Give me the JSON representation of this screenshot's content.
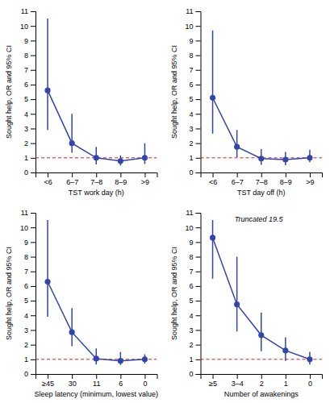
{
  "chart_data": [
    {
      "type": "line",
      "xlabel": "TST work day (h)",
      "ylabel": "Sought help, OR and 95% CI",
      "categories": [
        "<6",
        "6–7",
        "7–8",
        "8–9",
        ">9"
      ],
      "values": [
        5.6,
        2.0,
        1.0,
        0.78,
        1.0
      ],
      "ci_lower": [
        2.9,
        1.35,
        0.55,
        0.48,
        0.58
      ],
      "ci_upper": [
        10.5,
        4.0,
        1.75,
        1.15,
        2.0
      ],
      "ylim": [
        0,
        11
      ],
      "yticks": [
        0,
        1,
        2,
        3,
        4,
        5,
        6,
        7,
        8,
        9,
        10,
        11
      ],
      "color": "#3344aa",
      "marker": "circle",
      "ref_line": {
        "value": 1,
        "color": "#cc2222",
        "line_style": "dashed"
      }
    },
    {
      "type": "line",
      "xlabel": "TST day off (h)",
      "ylabel": "Sought help, OR and 95% CI",
      "categories": [
        "<6",
        "6–7",
        "7–8",
        "8–9",
        ">9"
      ],
      "values": [
        5.1,
        1.75,
        0.95,
        0.88,
        1.0
      ],
      "ci_lower": [
        2.65,
        1.05,
        0.52,
        0.5,
        0.7
      ],
      "ci_upper": [
        9.7,
        2.9,
        1.6,
        1.4,
        1.55
      ],
      "ylim": [
        0,
        11
      ],
      "yticks": [
        0,
        1,
        2,
        3,
        4,
        5,
        6,
        7,
        8,
        9,
        10,
        11
      ],
      "color": "#3344aa",
      "marker": "circle",
      "ref_line": {
        "value": 1,
        "color": "#cc2222",
        "line_style": "dashed"
      }
    },
    {
      "type": "line",
      "xlabel": "Sleep latency (minimum, lowest value)",
      "ylabel": "Sought help, OR and 95% CI",
      "categories": [
        "≥45",
        "30",
        "11",
        "6",
        "0"
      ],
      "values": [
        6.3,
        2.85,
        1.05,
        0.9,
        1.0
      ],
      "ci_lower": [
        3.9,
        1.9,
        0.65,
        0.62,
        0.72
      ],
      "ci_upper": [
        10.5,
        4.5,
        1.75,
        1.5,
        1.35
      ],
      "ylim": [
        0,
        11
      ],
      "yticks": [
        0,
        1,
        2,
        3,
        4,
        5,
        6,
        7,
        8,
        9,
        10,
        11
      ],
      "color": "#3344aa",
      "marker": "circle",
      "ref_line": {
        "value": 1,
        "color": "#cc2222",
        "line_style": "dashed"
      }
    },
    {
      "type": "line",
      "xlabel": "Number of awakenings",
      "ylabel": "Sought help, OR and 95% CI",
      "categories": [
        "≥5",
        "3–4",
        "2",
        "1",
        "0"
      ],
      "values": [
        9.3,
        4.75,
        2.65,
        1.6,
        1.0
      ],
      "ci_lower": [
        6.5,
        2.9,
        1.55,
        0.9,
        0.65
      ],
      "ci_upper": [
        10.5,
        8.0,
        4.2,
        2.5,
        1.5
      ],
      "ylim": [
        0,
        11
      ],
      "yticks": [
        0,
        1,
        2,
        3,
        4,
        5,
        6,
        7,
        8,
        9,
        10,
        11
      ],
      "color": "#3344aa",
      "marker": "circle",
      "ref_line": {
        "value": 1,
        "color": "#cc2222",
        "line_style": "dashed"
      },
      "annotation": "Truncated 19.5"
    }
  ]
}
